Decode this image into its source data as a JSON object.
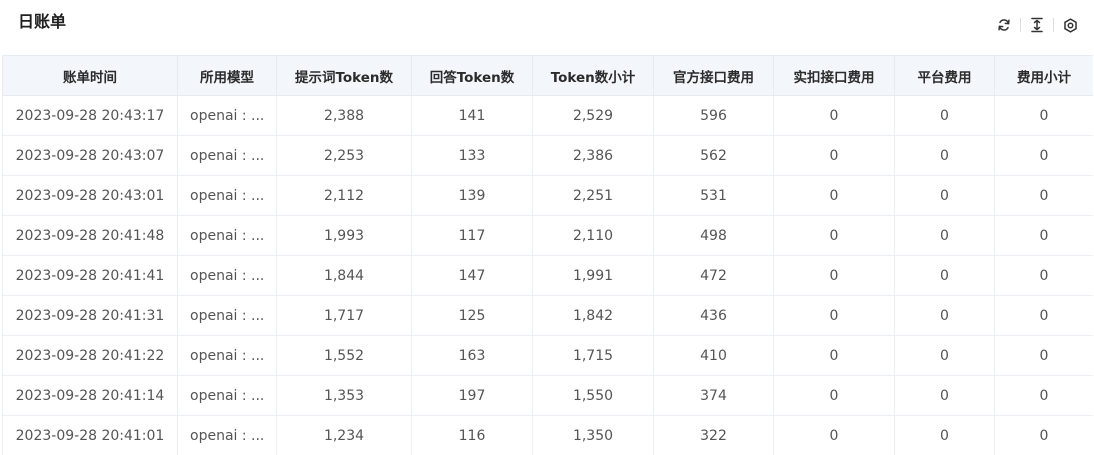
{
  "header": {
    "title": "日账单",
    "icons": [
      "refresh-icon",
      "column-height-icon",
      "settings-icon"
    ]
  },
  "table": {
    "columns": [
      "账单时间",
      "所用模型",
      "提示词Token数",
      "回答Token数",
      "Token数小计",
      "官方接口费用",
      "实扣接口费用",
      "平台费用",
      "费用小计"
    ],
    "rows": [
      [
        "2023-09-28 20:43:17",
        "openai : ...",
        "2,388",
        "141",
        "2,529",
        "596",
        "0",
        "0",
        "0"
      ],
      [
        "2023-09-28 20:43:07",
        "openai : ...",
        "2,253",
        "133",
        "2,386",
        "562",
        "0",
        "0",
        "0"
      ],
      [
        "2023-09-28 20:43:01",
        "openai : ...",
        "2,112",
        "139",
        "2,251",
        "531",
        "0",
        "0",
        "0"
      ],
      [
        "2023-09-28 20:41:48",
        "openai : ...",
        "1,993",
        "117",
        "2,110",
        "498",
        "0",
        "0",
        "0"
      ],
      [
        "2023-09-28 20:41:41",
        "openai : ...",
        "1,844",
        "147",
        "1,991",
        "472",
        "0",
        "0",
        "0"
      ],
      [
        "2023-09-28 20:41:31",
        "openai : ...",
        "1,717",
        "125",
        "1,842",
        "436",
        "0",
        "0",
        "0"
      ],
      [
        "2023-09-28 20:41:22",
        "openai : ...",
        "1,552",
        "163",
        "1,715",
        "410",
        "0",
        "0",
        "0"
      ],
      [
        "2023-09-28 20:41:14",
        "openai : ...",
        "1,353",
        "197",
        "1,550",
        "374",
        "0",
        "0",
        "0"
      ],
      [
        "2023-09-28 20:41:01",
        "openai : ...",
        "1,234",
        "116",
        "1,350",
        "322",
        "0",
        "0",
        "0"
      ]
    ]
  }
}
